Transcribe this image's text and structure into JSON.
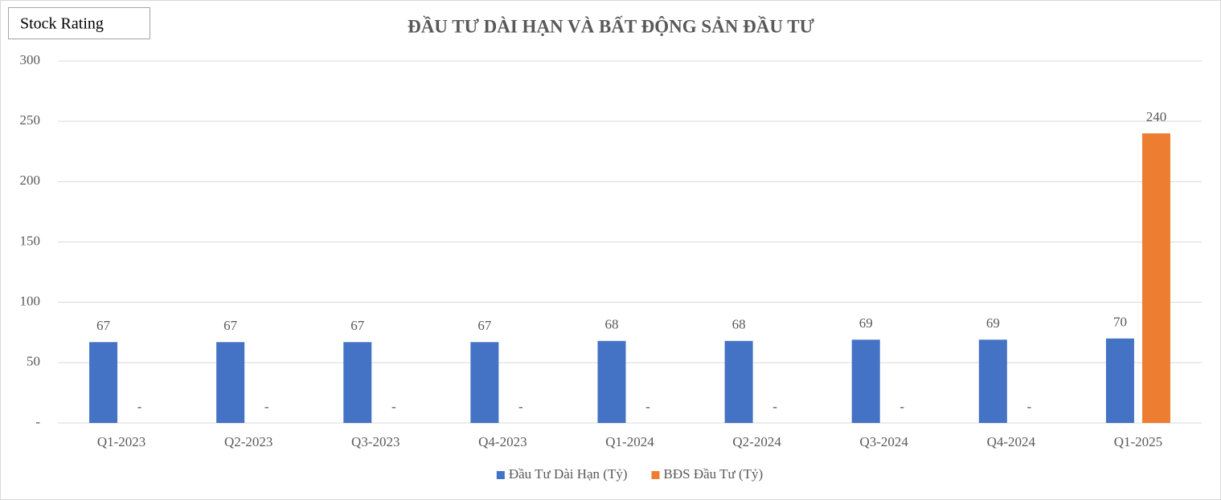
{
  "chart_data": {
    "type": "bar",
    "title": "ĐẦU TƯ DÀI HẠN VÀ BẤT ĐỘNG SẢN ĐẦU TƯ",
    "annotation": "Stock Rating",
    "categories": [
      "Q1-2023",
      "Q2-2023",
      "Q3-2023",
      "Q4-2023",
      "Q1-2024",
      "Q2-2024",
      "Q3-2024",
      "Q4-2024",
      "Q1-2025"
    ],
    "series": [
      {
        "name": "Đầu Tư Dài Hạn (Tỷ)",
        "color": "#4472c4",
        "values": [
          67,
          67,
          67,
          67,
          68,
          68,
          69,
          69,
          70
        ]
      },
      {
        "name": "BĐS Đầu Tư (Tỷ)",
        "color": "#ed7d31",
        "values": [
          0,
          0,
          0,
          0,
          0,
          0,
          0,
          0,
          240
        ],
        "value_labels": [
          "-",
          "-",
          "-",
          "-",
          "-",
          "-",
          "-",
          "-",
          "240"
        ]
      }
    ],
    "ylim": [
      0,
      300
    ],
    "yticks": [
      {
        "value": 0,
        "label": "-"
      },
      50,
      100,
      150,
      200,
      250,
      300
    ],
    "grid": true,
    "legend": "bottom"
  }
}
